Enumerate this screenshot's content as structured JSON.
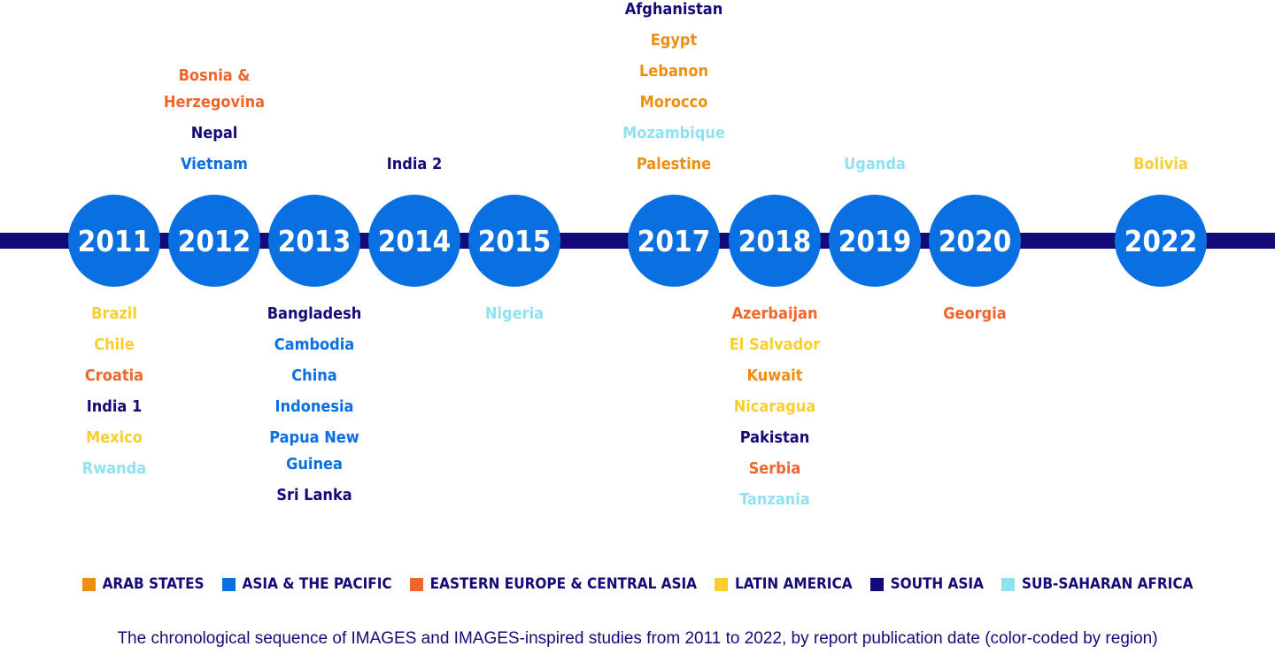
{
  "colors": {
    "line": "#140b78",
    "circle": "#0a6fe0",
    "regions": {
      "arab": "#ee8e12",
      "asia": "#0a6fe0",
      "eeca": "#f0652c",
      "latam": "#f7cf30",
      "south": "#140b78",
      "ssa": "#8fe2ee"
    }
  },
  "years": [
    {
      "label": "2011",
      "above": [],
      "below": [
        {
          "name": "Brazil",
          "region": "latam"
        },
        {
          "name": "Chile",
          "region": "latam"
        },
        {
          "name": "Croatia",
          "region": "eeca"
        },
        {
          "name": "India 1",
          "region": "south"
        },
        {
          "name": "Mexico",
          "region": "latam"
        },
        {
          "name": "Rwanda",
          "region": "ssa"
        }
      ]
    },
    {
      "label": "2012",
      "above": [
        {
          "name": "Bosnia &\nHerzegovina",
          "region": "eeca"
        },
        {
          "name": "Nepal",
          "region": "south"
        },
        {
          "name": "Vietnam",
          "region": "asia"
        }
      ],
      "below": []
    },
    {
      "label": "2013",
      "above": [],
      "below": [
        {
          "name": "Bangladesh",
          "region": "south"
        },
        {
          "name": "Cambodia",
          "region": "asia"
        },
        {
          "name": "China",
          "region": "asia"
        },
        {
          "name": "Indonesia",
          "region": "asia"
        },
        {
          "name": "Papua New\nGuinea",
          "region": "asia"
        },
        {
          "name": "Sri Lanka",
          "region": "south"
        }
      ]
    },
    {
      "label": "2014",
      "above": [
        {
          "name": "India 2",
          "region": "south"
        }
      ],
      "below": []
    },
    {
      "label": "2015",
      "above": [],
      "below": [
        {
          "name": "Nigeria",
          "region": "ssa"
        }
      ]
    },
    {
      "label": "2017",
      "above": [
        {
          "name": "Afghanistan",
          "region": "south"
        },
        {
          "name": "Egypt",
          "region": "arab"
        },
        {
          "name": "Lebanon",
          "region": "arab"
        },
        {
          "name": "Morocco",
          "region": "arab"
        },
        {
          "name": "Mozambique",
          "region": "ssa"
        },
        {
          "name": "Palestine",
          "region": "arab"
        }
      ],
      "below": []
    },
    {
      "label": "2018",
      "above": [],
      "below": [
        {
          "name": "Azerbaijan",
          "region": "eeca"
        },
        {
          "name": "El Salvador",
          "region": "latam"
        },
        {
          "name": "Kuwait",
          "region": "arab"
        },
        {
          "name": "Nicaragua",
          "region": "latam"
        },
        {
          "name": "Pakistan",
          "region": "south"
        },
        {
          "name": "Serbia",
          "region": "eeca"
        },
        {
          "name": "Tanzania",
          "region": "ssa"
        }
      ]
    },
    {
      "label": "2019",
      "above": [
        {
          "name": "Uganda",
          "region": "ssa"
        }
      ],
      "below": []
    },
    {
      "label": "2020",
      "above": [],
      "below": [
        {
          "name": "Georgia",
          "region": "eeca"
        }
      ]
    },
    {
      "label": "2022",
      "above": [
        {
          "name": "Bolivia",
          "region": "latam"
        }
      ],
      "below": []
    }
  ],
  "legend": [
    {
      "label": "Arab States",
      "region": "arab"
    },
    {
      "label": "Asia & the Pacific",
      "region": "asia"
    },
    {
      "label": "Eastern Europe & Central Asia",
      "region": "eeca"
    },
    {
      "label": "Latin America",
      "region": "latam"
    },
    {
      "label": "South Asia",
      "region": "south"
    },
    {
      "label": "Sub-Saharan Africa",
      "region": "ssa"
    }
  ],
  "caption": "The chronological sequence of IMAGES and IMAGES-inspired studies from 2011 to 2022, by report publication date (color-coded by region)"
}
